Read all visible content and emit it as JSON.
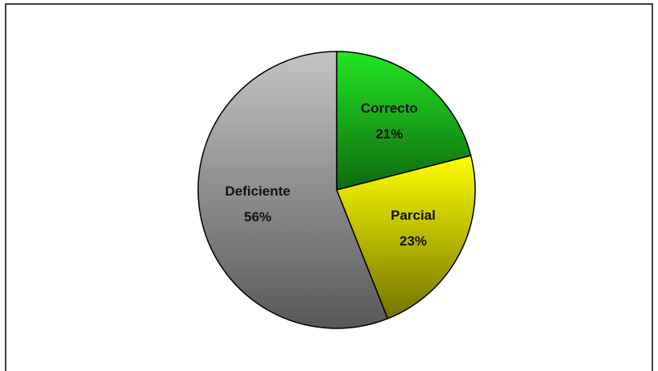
{
  "chart_data": {
    "type": "pie",
    "categories": [
      "Correcto",
      "Parcial",
      "Deficiente"
    ],
    "values": [
      21,
      23,
      56
    ],
    "value_labels": [
      "21%",
      "23%",
      "56%"
    ],
    "colors": [
      "#22e622",
      "#ffff00",
      "#c4c4c4"
    ]
  }
}
